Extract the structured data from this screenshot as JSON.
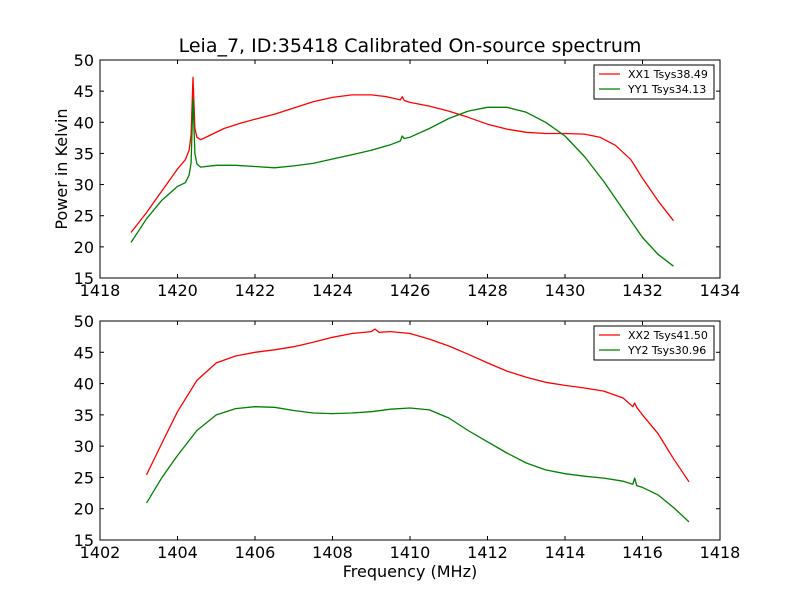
{
  "chart_data": [
    {
      "type": "line",
      "title": "Leia_7, ID:35418 Calibrated On-source spectrum",
      "xlabel": "",
      "ylabel": "Power in Kelvin",
      "xlim": [
        1418,
        1434
      ],
      "ylim": [
        15,
        50
      ],
      "xticks": [
        "1418",
        "1420",
        "1422",
        "1424",
        "1426",
        "1428",
        "1430",
        "1432",
        "1434"
      ],
      "yticks": [
        "15",
        "20",
        "25",
        "30",
        "35",
        "40",
        "45",
        "50"
      ],
      "legend_position": "top-right",
      "series": [
        {
          "name": "XX1 Tsys38.49",
          "color": "#ff0000",
          "x": [
            1418.8,
            1419.2,
            1419.6,
            1420.0,
            1420.2,
            1420.3,
            1420.35,
            1420.4,
            1420.45,
            1420.5,
            1420.6,
            1420.8,
            1421.2,
            1421.6,
            1422.0,
            1422.5,
            1423.0,
            1423.5,
            1424.0,
            1424.5,
            1425.0,
            1425.4,
            1425.75,
            1425.8,
            1425.85,
            1426.0,
            1426.5,
            1427.0,
            1427.5,
            1428.0,
            1428.5,
            1429.0,
            1429.5,
            1430.0,
            1430.5,
            1430.9,
            1431.3,
            1431.7,
            1432.0,
            1432.4,
            1432.8
          ],
          "y": [
            22.3,
            25.5,
            29.0,
            32.5,
            34.0,
            35.5,
            38.0,
            47.2,
            39.0,
            37.6,
            37.2,
            37.8,
            39.0,
            39.8,
            40.5,
            41.3,
            42.3,
            43.3,
            44.0,
            44.4,
            44.4,
            44.1,
            43.6,
            44.1,
            43.5,
            43.2,
            42.6,
            41.8,
            40.8,
            39.7,
            38.9,
            38.4,
            38.2,
            38.2,
            38.1,
            37.6,
            36.3,
            34.0,
            31.0,
            27.4,
            24.2
          ]
        },
        {
          "name": "YY1 Tsys34.13",
          "color": "#008000",
          "x": [
            1418.8,
            1419.2,
            1419.6,
            1420.0,
            1420.2,
            1420.3,
            1420.35,
            1420.4,
            1420.45,
            1420.5,
            1420.6,
            1421.0,
            1421.5,
            1422.0,
            1422.5,
            1423.0,
            1423.5,
            1424.0,
            1424.5,
            1425.0,
            1425.5,
            1425.75,
            1425.8,
            1425.85,
            1426.0,
            1426.5,
            1427.0,
            1427.5,
            1428.0,
            1428.5,
            1429.0,
            1429.5,
            1430.0,
            1430.5,
            1431.0,
            1431.5,
            1432.0,
            1432.4,
            1432.8
          ],
          "y": [
            20.7,
            24.5,
            27.5,
            29.7,
            30.3,
            31.5,
            33.5,
            43.8,
            35.0,
            33.3,
            32.8,
            33.1,
            33.1,
            32.9,
            32.7,
            33.0,
            33.4,
            34.1,
            34.8,
            35.5,
            36.4,
            37.0,
            37.8,
            37.4,
            37.6,
            39.0,
            40.6,
            41.8,
            42.4,
            42.4,
            41.6,
            40.0,
            37.8,
            34.5,
            30.5,
            26.0,
            21.5,
            18.8,
            16.9
          ]
        }
      ]
    },
    {
      "type": "line",
      "title": "",
      "xlabel": "Frequency (MHz)",
      "ylabel": "",
      "xlim": [
        1402,
        1418
      ],
      "ylim": [
        15,
        50
      ],
      "xticks": [
        "1402",
        "1404",
        "1406",
        "1408",
        "1410",
        "1412",
        "1414",
        "1416",
        "1418"
      ],
      "yticks": [
        "15",
        "20",
        "25",
        "30",
        "35",
        "40",
        "45",
        "50"
      ],
      "legend_position": "top-right",
      "series": [
        {
          "name": "XX2 Tsys41.50",
          "color": "#ff0000",
          "x": [
            1403.2,
            1403.6,
            1404.0,
            1404.5,
            1405.0,
            1405.5,
            1406.0,
            1406.5,
            1407.0,
            1407.5,
            1408.0,
            1408.5,
            1409.0,
            1409.1,
            1409.2,
            1409.5,
            1410.0,
            1410.5,
            1411.0,
            1411.5,
            1412.0,
            1412.5,
            1413.0,
            1413.5,
            1414.0,
            1414.5,
            1415.0,
            1415.5,
            1415.75,
            1415.8,
            1415.85,
            1416.0,
            1416.4,
            1416.8,
            1417.2
          ],
          "y": [
            25.4,
            30.5,
            35.5,
            40.5,
            43.3,
            44.4,
            45.0,
            45.4,
            45.9,
            46.6,
            47.4,
            48.0,
            48.3,
            48.7,
            48.2,
            48.3,
            48.0,
            47.1,
            46.0,
            44.7,
            43.3,
            42.0,
            41.0,
            40.2,
            39.7,
            39.3,
            38.8,
            37.7,
            36.3,
            36.9,
            36.2,
            35.0,
            32.0,
            28.0,
            24.3
          ]
        },
        {
          "name": "YY2 Tsys30.96",
          "color": "#008000",
          "x": [
            1403.2,
            1403.6,
            1404.0,
            1404.5,
            1405.0,
            1405.5,
            1406.0,
            1406.5,
            1407.0,
            1407.5,
            1408.0,
            1408.5,
            1409.0,
            1409.5,
            1410.0,
            1410.5,
            1411.0,
            1411.5,
            1412.0,
            1412.5,
            1413.0,
            1413.5,
            1414.0,
            1414.5,
            1415.0,
            1415.5,
            1415.75,
            1415.8,
            1415.85,
            1416.0,
            1416.4,
            1416.8,
            1417.2
          ],
          "y": [
            20.9,
            25.0,
            28.5,
            32.5,
            35.0,
            36.0,
            36.3,
            36.2,
            35.7,
            35.3,
            35.2,
            35.3,
            35.5,
            35.9,
            36.1,
            35.8,
            34.5,
            32.5,
            30.7,
            28.9,
            27.3,
            26.2,
            25.6,
            25.2,
            24.9,
            24.4,
            23.9,
            24.9,
            23.7,
            23.4,
            22.2,
            20.2,
            17.9
          ]
        }
      ]
    }
  ]
}
